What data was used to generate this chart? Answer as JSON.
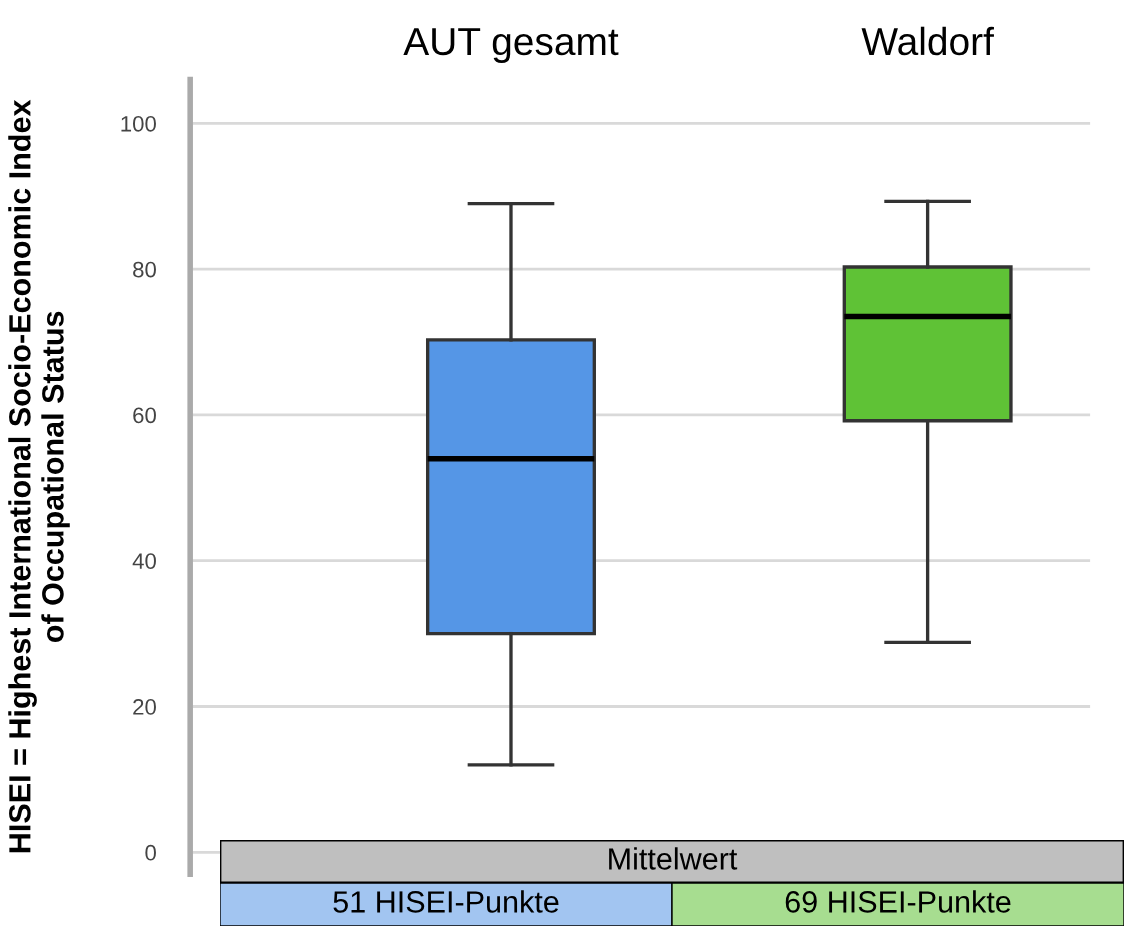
{
  "chart_data": {
    "type": "box",
    "ylabel": "HISEI = Highest International Socio-Economic Index\nof Occupational Status",
    "categories": [
      "AUT gesamt",
      "Waldorf"
    ],
    "colors": [
      "#5596e6",
      "#5fc236"
    ],
    "boxes": [
      {
        "low": 12,
        "q1": 30,
        "median": 54,
        "q3": 70.3,
        "high": 89
      },
      {
        "low": 28.8,
        "q1": 59.2,
        "median": 73.5,
        "q3": 80.3,
        "high": 89.3
      }
    ],
    "ylim": [
      -3,
      106
    ],
    "yticks": [
      0,
      20,
      40,
      60,
      80,
      100
    ],
    "grid": "y",
    "annotations": [
      "Mittelwert",
      "51 HISEI-Punkte",
      "69 HISEI-Punkte"
    ]
  }
}
